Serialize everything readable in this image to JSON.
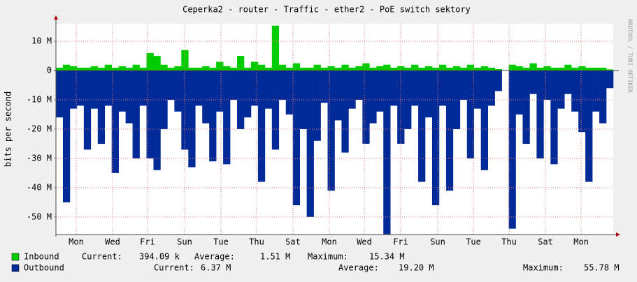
{
  "chart_data": {
    "type": "area",
    "title": "Ceperka2 - router - Traffic - ether2 - PoE switch sektory",
    "y_label": "bits per second",
    "watermark": "RRDTOOL / TOBI OETIKER",
    "ylim": [
      -56,
      16
    ],
    "yticks": [
      {
        "value": -50,
        "label": "-50 M"
      },
      {
        "value": -40,
        "label": "-40 M"
      },
      {
        "value": -30,
        "label": "-30 M"
      },
      {
        "value": -20,
        "label": "-20 M"
      },
      {
        "value": -10,
        "label": "-10 M"
      },
      0,
      {
        "value": 10,
        "label": "10 M"
      }
    ],
    "xticks": [
      {
        "value": 2.91,
        "label": "Mon"
      },
      {
        "value": 8.13,
        "label": "Wed"
      },
      {
        "value": 13.15,
        "label": "Fri"
      },
      {
        "value": 18.47,
        "label": "Sun"
      },
      {
        "value": 23.69,
        "label": "Tue"
      },
      {
        "value": 28.81,
        "label": "Thu"
      },
      {
        "value": 34.03,
        "label": "Sat"
      },
      {
        "value": 39.25,
        "label": "Mon"
      },
      {
        "value": 44.27,
        "label": "Wed"
      },
      {
        "value": 49.49,
        "label": "Fri"
      },
      {
        "value": 54.81,
        "label": "Sun"
      },
      {
        "value": 59.93,
        "label": "Tue"
      },
      {
        "value": 65.05,
        "label": "Thu"
      },
      {
        "value": 70.27,
        "label": "Sat"
      },
      {
        "value": 75.39,
        "label": "Mon"
      }
    ],
    "grid": true,
    "stat_labels": [
      "Current:",
      "Average:",
      "Maximum:"
    ],
    "series": [
      {
        "name": "Inbound",
        "color": "#00cc00",
        "stats": [
          "394.09 k",
          "1.51 M",
          "15.34 M"
        ],
        "values": [
          1,
          2,
          1.5,
          1,
          1,
          1.5,
          1,
          2,
          1,
          1.5,
          1,
          2,
          1,
          6,
          5,
          2,
          1,
          1.5,
          7,
          1,
          1,
          1.5,
          1,
          3,
          1.5,
          1,
          5,
          1,
          3,
          2,
          1,
          15.34,
          2,
          1,
          2.5,
          1,
          1,
          2,
          1,
          1.5,
          1,
          2,
          1,
          1.5,
          2.5,
          1,
          1.5,
          2,
          1,
          1.5,
          1,
          2,
          1,
          1.5,
          1,
          2,
          1,
          1.5,
          1,
          2,
          1,
          1.5,
          1,
          0.5,
          null,
          2,
          1.5,
          1,
          2.5,
          1,
          1.5,
          1,
          1,
          2,
          1,
          1.5,
          1,
          1,
          1,
          0.4
        ]
      },
      {
        "name": "Outbound",
        "color": "#002a97",
        "stats": [
          "6.37 M",
          "19.20 M",
          "55.78 M"
        ],
        "values": [
          -16,
          -45,
          -13,
          -12,
          -27,
          -13,
          -25,
          -12,
          -35,
          -14,
          -18,
          -30,
          -12,
          -30,
          -34,
          -20,
          -10,
          -14,
          -27,
          -33,
          -12,
          -18,
          -31,
          -14,
          -32,
          -10,
          -20,
          -16,
          -12,
          -38,
          -13,
          -27,
          -10,
          -15,
          -46,
          -20,
          -50,
          -24,
          -11,
          -41,
          -17,
          -28,
          -13,
          -10,
          -25,
          -18,
          -14,
          -56,
          -12,
          -25,
          -20,
          -12,
          -38,
          -16,
          -46,
          -12,
          -41,
          -20,
          -10,
          -30,
          -13,
          -34,
          -12,
          -7,
          null,
          -54,
          -15,
          -25,
          -8,
          -30,
          -10,
          -32,
          -13,
          -8,
          -14,
          -21,
          -38,
          -14,
          -18,
          -6
        ]
      }
    ]
  }
}
